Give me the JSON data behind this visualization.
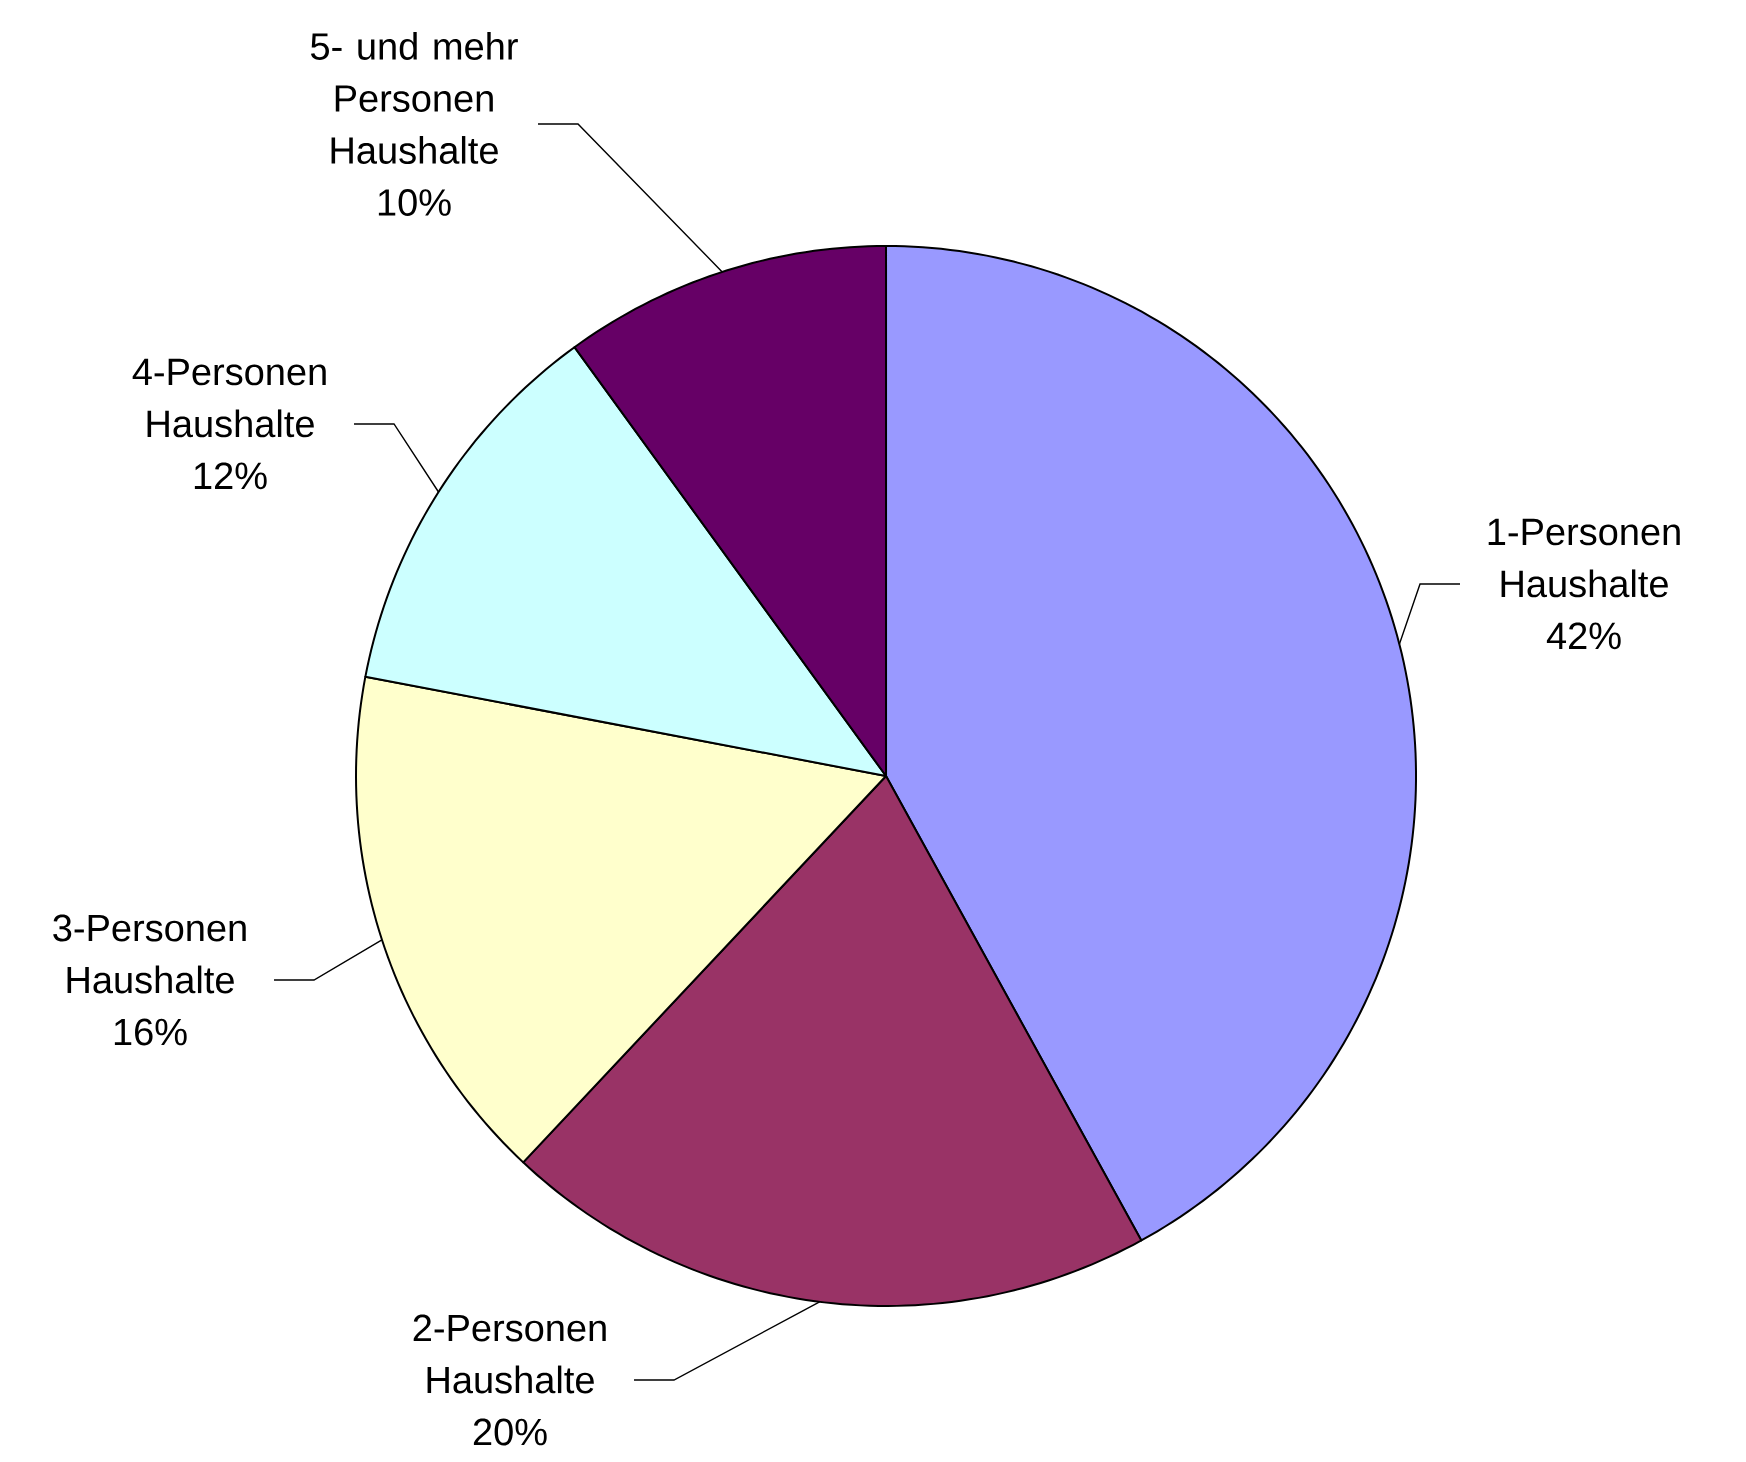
{
  "chart_data": {
    "type": "pie",
    "categories": [
      "1-Personen Haushalte",
      "2-Personen Haushalte",
      "3-Personen Haushalte",
      "4-Personen Haushalte",
      "5- und mehr Personen Haushalte"
    ],
    "values": [
      42,
      20,
      16,
      12,
      10
    ],
    "value_labels": [
      "42%",
      "20%",
      "16%",
      "12%",
      "10%"
    ],
    "colors": [
      "#9999ff",
      "#993366",
      "#ffffcc",
      "#ccffff",
      "#660066"
    ]
  }
}
